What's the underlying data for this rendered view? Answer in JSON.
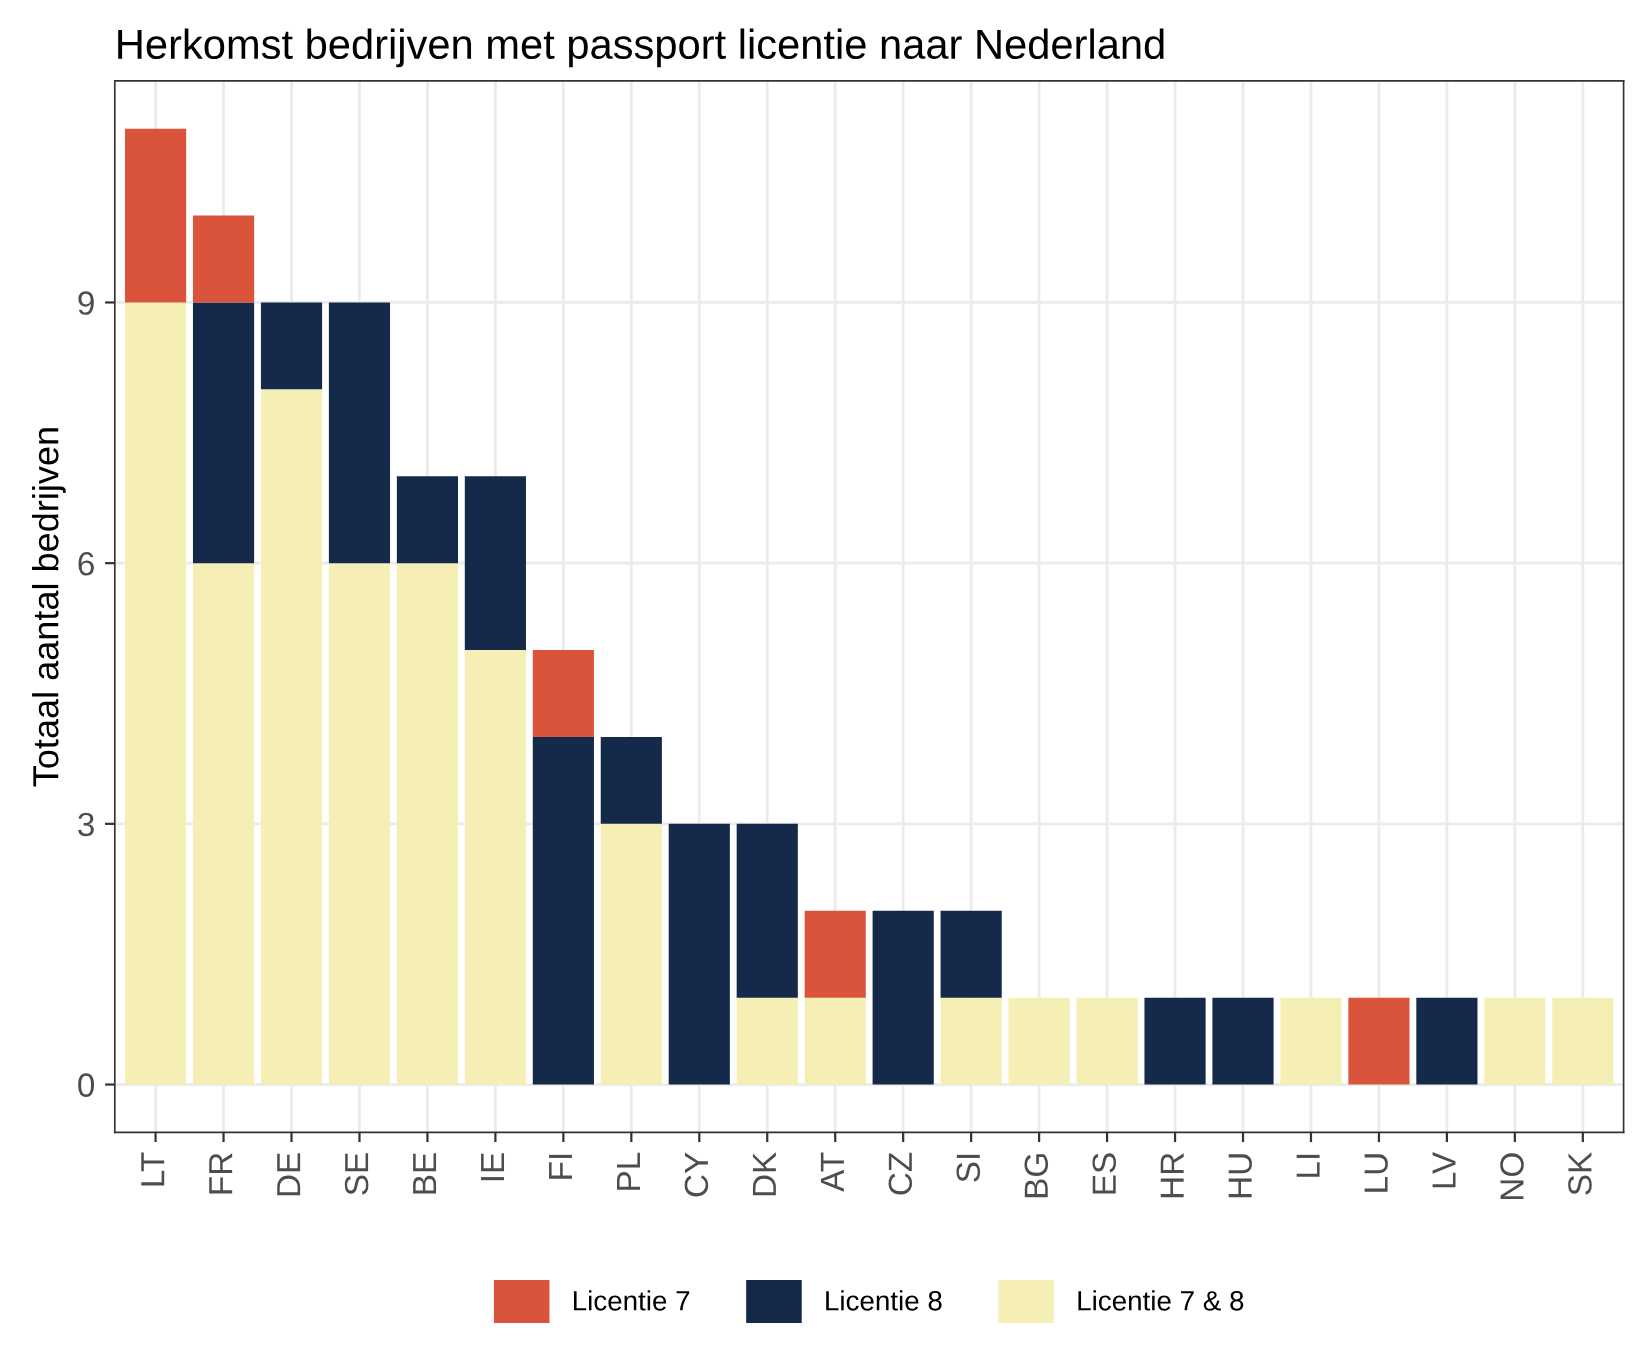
{
  "chart_data": {
    "type": "bar",
    "title": "Herkomst bedrijven met passport licentie naar Nederland",
    "ylabel": "Totaal aantal bedrijven",
    "categories": [
      "LT",
      "FR",
      "DE",
      "SE",
      "BE",
      "IE",
      "FI",
      "PL",
      "CY",
      "DK",
      "AT",
      "CZ",
      "SI",
      "BG",
      "ES",
      "HR",
      "HU",
      "LI",
      "LU",
      "LV",
      "NO",
      "SK"
    ],
    "stacked": true,
    "series": [
      {
        "name": "Licentie 7 & 8",
        "color": "#f5efb5",
        "values": [
          9,
          6,
          8,
          6,
          6,
          5,
          0,
          3,
          0,
          1,
          1,
          0,
          1,
          1,
          1,
          0,
          0,
          1,
          0,
          0,
          1,
          1
        ]
      },
      {
        "name": "Licentie 8",
        "color": "#15294a",
        "values": [
          0,
          3,
          1,
          3,
          1,
          2,
          4,
          1,
          3,
          2,
          0,
          2,
          1,
          0,
          0,
          1,
          1,
          0,
          0,
          1,
          0,
          0
        ]
      },
      {
        "name": "Licentie 7",
        "color": "#d9543a",
        "values": [
          2,
          1,
          0,
          0,
          0,
          0,
          1,
          0,
          0,
          0,
          1,
          0,
          0,
          0,
          0,
          0,
          0,
          0,
          1,
          0,
          0,
          0
        ]
      }
    ],
    "ylim": [
      -0.55,
      11.55
    ],
    "yticks": [
      0,
      3,
      6,
      9
    ],
    "grid": true,
    "legend": "bottom"
  }
}
